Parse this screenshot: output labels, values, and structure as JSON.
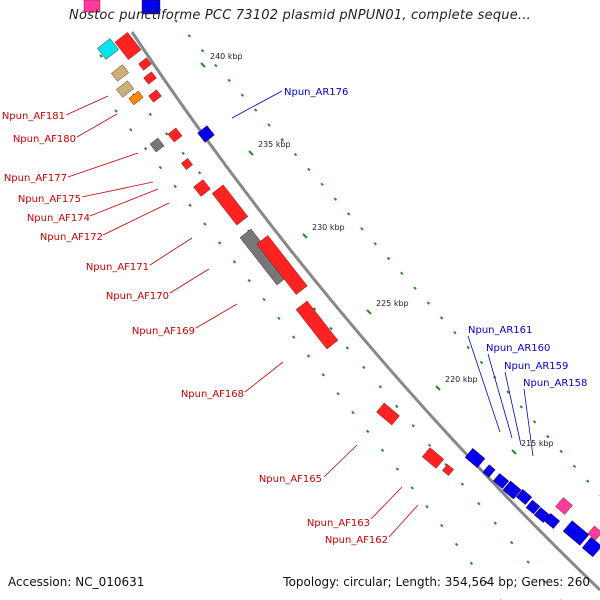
{
  "title": "Nostoc punctiforme PCC 73102 plasmid pNPUN01, complete seque...",
  "footer": {
    "accession": "Accession: NC_010631",
    "summary": "Topology: circular; Length: 354,564 bp; Genes: 260"
  },
  "colors": {
    "forward_cds": "#ff0000",
    "reverse_cds": "#0000ff",
    "other_feature": "#808080",
    "label_forward": "#cc0000",
    "label_reverse": "#0000cc",
    "backbone": "#888888",
    "tick": "#2a8a2a"
  },
  "ticks": [
    "240 kbp",
    "235 kbp",
    "230 kbp",
    "225 kbp",
    "220 kbp",
    "215 kbp"
  ],
  "labels_reverse": [
    "Npun_AR176",
    "Npun_AR161",
    "Npun_AR160",
    "Npun_AR159",
    "Npun_AR158"
  ],
  "labels_forward": [
    "Npun_AF181",
    "Npun_AF180",
    "Npun_AF177",
    "Npun_AF175",
    "Npun_AF174",
    "Npun_AF172",
    "Npun_AF171",
    "Npun_AF170",
    "Npun_AF169",
    "Npun_AF168",
    "Npun_AF165",
    "Npun_AF163",
    "Npun_AF162"
  ]
}
